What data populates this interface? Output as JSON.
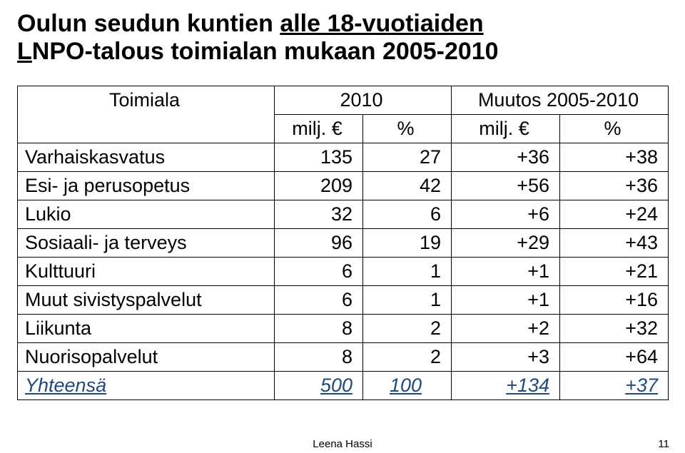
{
  "title": {
    "line1_pre": "Oulun seudun kuntien ",
    "line1_u": "alle 18-vuotiaiden",
    "line2_u_prefix": "L",
    "line2_rest": "NPO-talous toimialan mukaan 2005-2010"
  },
  "header": {
    "toimiala": "Toimiala",
    "y2010": "2010",
    "muutos": "Muutos 2005-2010",
    "milj": "milj. €",
    "pct": "%"
  },
  "rows": [
    {
      "label": "Varhaiskasvatus",
      "v2010_milj": "135",
      "v2010_pct": "27",
      "mu_milj": "+36",
      "mu_pct": "+38"
    },
    {
      "label": "Esi- ja perusopetus",
      "v2010_milj": "209",
      "v2010_pct": "42",
      "mu_milj": "+56",
      "mu_pct": "+36"
    },
    {
      "label": "Lukio",
      "v2010_milj": "32",
      "v2010_pct": "6",
      "mu_milj": "+6",
      "mu_pct": "+24"
    },
    {
      "label": "Sosiaali- ja terveys",
      "v2010_milj": "96",
      "v2010_pct": "19",
      "mu_milj": "+29",
      "mu_pct": "+43"
    }
  ],
  "rows2": [
    {
      "label": "Kulttuuri",
      "v2010_milj": "6",
      "v2010_pct": "1",
      "mu_milj": "+1",
      "mu_pct": "+21"
    },
    {
      "label": "Muut sivistyspalvelut",
      "v2010_milj": "6",
      "v2010_pct": "1",
      "mu_milj": "+1",
      "mu_pct": "+16"
    }
  ],
  "rows3": [
    {
      "label": "Liikunta",
      "v2010_milj": "8",
      "v2010_pct": "2",
      "mu_milj": "+2",
      "mu_pct": "+32"
    },
    {
      "label": "Nuorisopalvelut",
      "v2010_milj": "8",
      "v2010_pct": "2",
      "mu_milj": "+3",
      "mu_pct": "+64"
    }
  ],
  "total": {
    "label": "Yhteensä",
    "v2010_milj": "500",
    "v2010_pct": "100",
    "mu_milj": "+134",
    "mu_pct": "+37"
  },
  "footer": {
    "author": "Leena Hassi",
    "page": "11"
  }
}
